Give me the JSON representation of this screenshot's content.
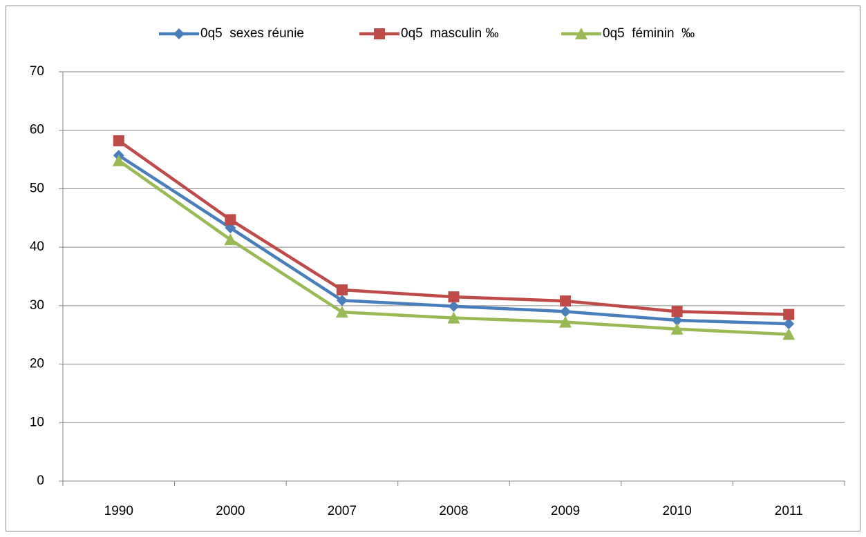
{
  "chart_data": {
    "type": "line",
    "categories": [
      "1990",
      "2000",
      "2007",
      "2008",
      "2009",
      "2010",
      "2011"
    ],
    "series": [
      {
        "name": "0q5  sexes réunie",
        "color": "#4a7ebb",
        "marker": "diamond",
        "values": [
          55.7,
          43.3,
          30.9,
          29.9,
          29.0,
          27.5,
          26.9
        ]
      },
      {
        "name": "0q5  masculin ‰",
        "color": "#be4b48",
        "marker": "square",
        "values": [
          58.2,
          44.7,
          32.7,
          31.5,
          30.8,
          29.0,
          28.5
        ]
      },
      {
        "name": "0q5  féminin  ‰",
        "color": "#98b954",
        "marker": "triangle",
        "values": [
          54.8,
          41.3,
          28.9,
          27.9,
          27.2,
          26.0,
          25.1
        ]
      }
    ],
    "ylim": [
      0,
      70
    ],
    "yticks": [
      0,
      10,
      20,
      30,
      40,
      50,
      60,
      70
    ],
    "grid": true,
    "legend": "top"
  }
}
